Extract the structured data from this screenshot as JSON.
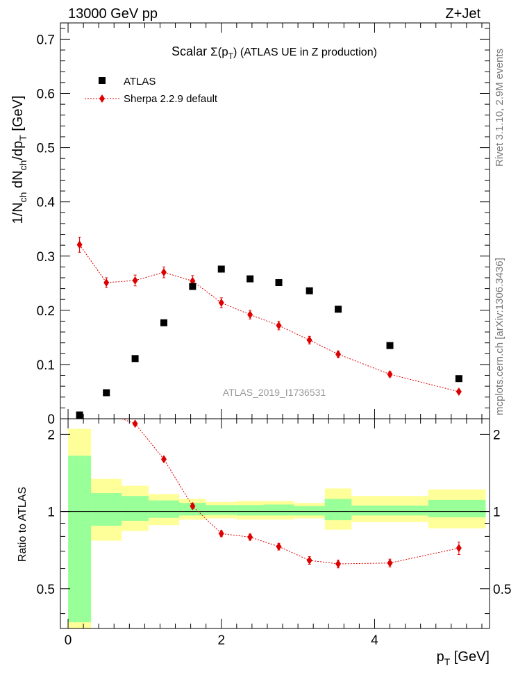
{
  "header": {
    "left": "13000 GeV pp",
    "right": "Z+Jet"
  },
  "side_labels": {
    "rivet": "Rivet 3.1.10, 2.9M events",
    "mcplots": "mcplots.cern.ch [arXiv:1306.3436]"
  },
  "chart_data": [
    {
      "type": "scatter",
      "title_main": "Scalar ",
      "title_sigma": "Σ(p",
      "title_sub": "T",
      "title_rest": ") (ATLAS UE in Z production)",
      "ylabel_parts": [
        "1/N",
        "ch",
        " dN",
        "ch",
        "/dp",
        "T",
        " [GeV]"
      ],
      "ylim": [
        0,
        0.73
      ],
      "xlim": [
        -0.1,
        5.5
      ],
      "yticks": [
        "0",
        "0.1",
        "0.2",
        "0.3",
        "0.4",
        "0.5",
        "0.6",
        "0.7"
      ],
      "watermark": "ATLAS_2019_I1736531",
      "legend_position": "top-left",
      "series": [
        {
          "name": "ATLAS",
          "color": "#000000",
          "marker": "square",
          "x": [
            0.15,
            0.5,
            0.875,
            1.25,
            1.625,
            2.0,
            2.375,
            2.75,
            3.15,
            3.525,
            4.2,
            5.1
          ],
          "y": [
            0.007,
            0.048,
            0.111,
            0.177,
            0.244,
            0.276,
            0.258,
            0.251,
            0.236,
            0.202,
            0.135,
            0.074
          ]
        },
        {
          "name": "Sherpa 2.2.9 default",
          "color": "#dd0000",
          "marker": "diamond",
          "x": [
            0.15,
            0.5,
            0.875,
            1.25,
            1.625,
            2.0,
            2.375,
            2.75,
            3.15,
            3.525,
            4.2,
            5.1
          ],
          "y": [
            0.321,
            0.251,
            0.255,
            0.27,
            0.254,
            0.214,
            0.192,
            0.172,
            0.145,
            0.119,
            0.082,
            0.05
          ],
          "yerr": [
            0.014,
            0.009,
            0.01,
            0.01,
            0.01,
            0.009,
            0.008,
            0.008,
            0.007,
            0.006,
            0.005,
            0.004
          ]
        }
      ]
    },
    {
      "type": "scatter",
      "ylabel": "Ratio to ATLAS",
      "xlabel_main": "p",
      "xlabel_sub": "T",
      "xlabel_rest": " [GeV]",
      "ylim": [
        0.35,
        2.3
      ],
      "xlim": [
        -0.1,
        5.5
      ],
      "yticks": [
        "0.5",
        "1",
        "2"
      ],
      "xticks": [
        "0",
        "2",
        "4"
      ],
      "bins": [
        {
          "lo": 0.0,
          "hi": 0.3,
          "green": [
            0.37,
            1.65
          ],
          "yellow": [
            0.33,
            2.1
          ]
        },
        {
          "lo": 0.3,
          "hi": 0.7,
          "green": [
            0.88,
            1.18
          ],
          "yellow": [
            0.77,
            1.34
          ]
        },
        {
          "lo": 0.7,
          "hi": 1.05,
          "green": [
            0.92,
            1.15
          ],
          "yellow": [
            0.84,
            1.26
          ]
        },
        {
          "lo": 1.05,
          "hi": 1.45,
          "green": [
            0.945,
            1.105
          ],
          "yellow": [
            0.885,
            1.17
          ]
        },
        {
          "lo": 1.45,
          "hi": 1.8,
          "green": [
            0.965,
            1.08
          ],
          "yellow": [
            0.93,
            1.12
          ]
        },
        {
          "lo": 1.8,
          "hi": 2.2,
          "green": [
            0.97,
            1.06
          ],
          "yellow": [
            0.94,
            1.09
          ]
        },
        {
          "lo": 2.2,
          "hi": 2.55,
          "green": [
            0.965,
            1.06
          ],
          "yellow": [
            0.93,
            1.1
          ]
        },
        {
          "lo": 2.55,
          "hi": 2.95,
          "green": [
            0.965,
            1.065
          ],
          "yellow": [
            0.93,
            1.1
          ]
        },
        {
          "lo": 2.95,
          "hi": 3.35,
          "green": [
            0.965,
            1.05
          ],
          "yellow": [
            0.94,
            1.08
          ]
        },
        {
          "lo": 3.35,
          "hi": 3.7,
          "green": [
            0.925,
            1.12
          ],
          "yellow": [
            0.85,
            1.23
          ]
        },
        {
          "lo": 3.7,
          "hi": 4.7,
          "green": [
            0.965,
            1.055
          ],
          "yellow": [
            0.91,
            1.15
          ]
        },
        {
          "lo": 4.7,
          "hi": 5.45,
          "green": [
            0.95,
            1.11
          ],
          "yellow": [
            0.86,
            1.22
          ]
        }
      ],
      "series": [
        {
          "name": "Sherpa 2.2.9 default",
          "color": "#dd0000",
          "marker": "diamond",
          "x": [
            0.875,
            1.25,
            1.625,
            2.0,
            2.375,
            2.75,
            3.15,
            3.525,
            4.2,
            5.1
          ],
          "y": [
            2.2,
            1.6,
            1.05,
            0.82,
            0.795,
            0.73,
            0.645,
            0.625,
            0.63,
            0.72
          ],
          "yerr": [
            0.03,
            0.03,
            0.025,
            0.022,
            0.022,
            0.022,
            0.022,
            0.022,
            0.022,
            0.04
          ]
        }
      ]
    }
  ]
}
